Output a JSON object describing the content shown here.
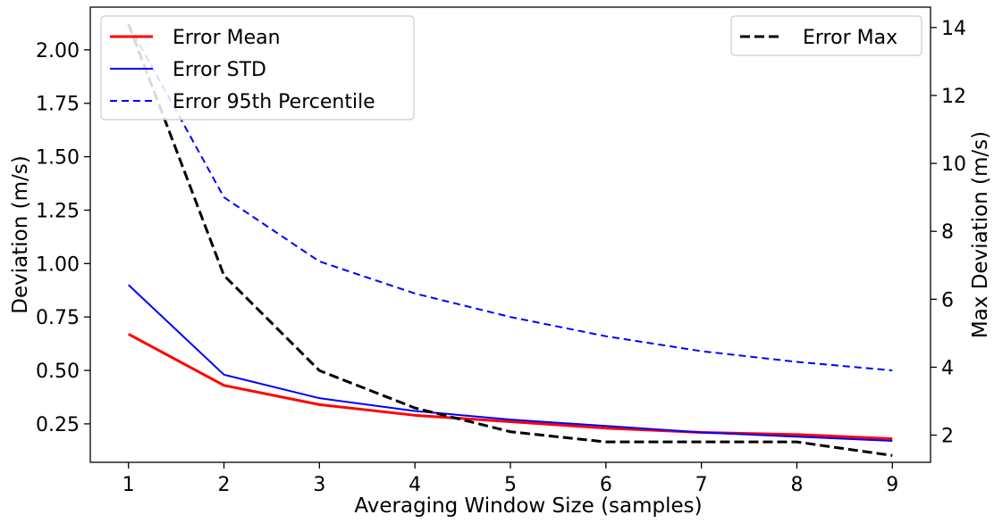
{
  "chart_data": {
    "type": "line",
    "title": "",
    "xlabel": "Averaging Window Size (samples)",
    "ylabel": "Deviation (m/s)",
    "y2label": "Max Deviation (m/s)",
    "x": [
      1,
      2,
      3,
      4,
      5,
      6,
      7,
      8,
      9
    ],
    "xticks": [
      "1",
      "2",
      "3",
      "4",
      "5",
      "6",
      "7",
      "8",
      "9"
    ],
    "xlim": [
      0.6,
      9.4
    ],
    "ylim": [
      0.07,
      2.2
    ],
    "y2lim": [
      1.2,
      14.6
    ],
    "yticks": [
      "0.25",
      "0.50",
      "0.75",
      "1.00",
      "1.25",
      "1.50",
      "1.75",
      "2.00"
    ],
    "y2ticks": [
      "2",
      "4",
      "6",
      "8",
      "10",
      "12",
      "14"
    ],
    "grid": false,
    "series": [
      {
        "name": "Error Mean",
        "axis": "left",
        "color": "#ff0000",
        "style": "solid",
        "width": "thick",
        "values": [
          0.67,
          0.43,
          0.34,
          0.29,
          0.26,
          0.23,
          0.21,
          0.2,
          0.18
        ]
      },
      {
        "name": "Error STD",
        "axis": "left",
        "color": "#0000ff",
        "style": "solid",
        "width": "thin",
        "values": [
          0.9,
          0.48,
          0.37,
          0.31,
          0.27,
          0.24,
          0.21,
          0.19,
          0.17
        ]
      },
      {
        "name": "Error 95th Percentile",
        "axis": "left",
        "color": "#0000ff",
        "style": "dashed",
        "width": "thin",
        "values": [
          2.12,
          1.31,
          1.01,
          0.86,
          0.75,
          0.66,
          0.59,
          0.54,
          0.5
        ]
      },
      {
        "name": "Error Max",
        "axis": "right",
        "color": "#000000",
        "style": "dashed",
        "width": "thick",
        "values": [
          14.1,
          6.7,
          3.9,
          2.8,
          2.1,
          1.8,
          1.8,
          1.8,
          1.4
        ]
      }
    ],
    "legends": [
      {
        "placement": "top-left",
        "entries": [
          "Error Mean",
          "Error STD",
          "Error 95th Percentile"
        ]
      },
      {
        "placement": "top-right",
        "entries": [
          "Error Max"
        ]
      }
    ]
  }
}
